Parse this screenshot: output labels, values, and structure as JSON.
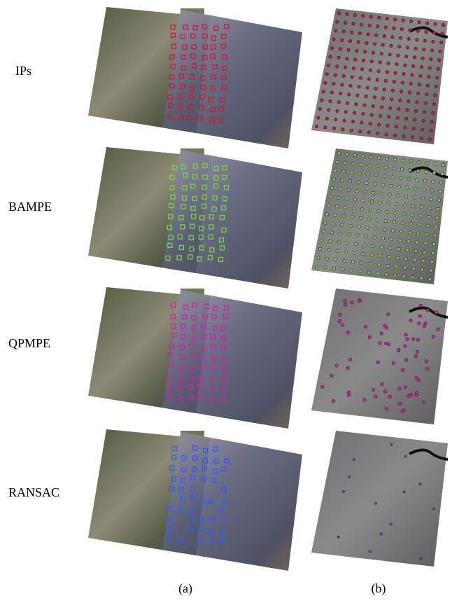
{
  "rows": [
    {
      "label": "IPs"
    },
    {
      "label": "BAMPE"
    },
    {
      "label": "QPMPE"
    },
    {
      "label": "RANSAC"
    }
  ],
  "columns": [
    {
      "label": "(a)"
    },
    {
      "label": "(b)"
    }
  ]
}
